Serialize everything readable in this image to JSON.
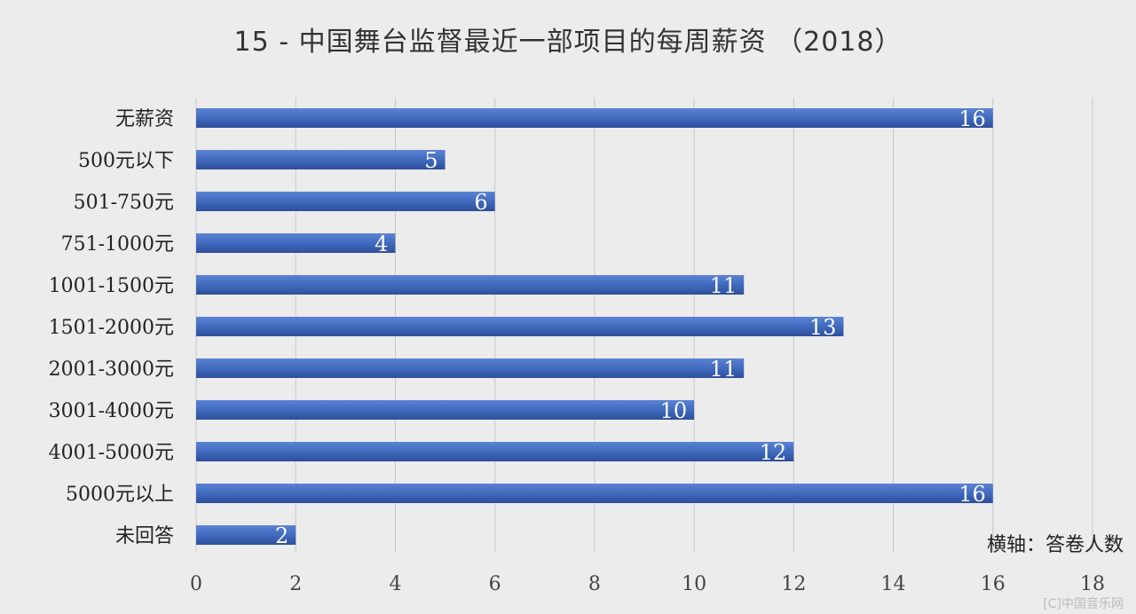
{
  "chart_data": {
    "type": "bar",
    "orientation": "horizontal",
    "title": "15 - 中国舞台监督最近一部项目的每周薪资 （2018）",
    "categories": [
      "无薪资",
      "500元以下",
      "501-750元",
      "751-1000元",
      "1001-1500元",
      "1501-2000元",
      "2001-3000元",
      "3001-4000元",
      "4001-5000元",
      "5000元以上",
      "未回答"
    ],
    "values": [
      16,
      5,
      6,
      4,
      11,
      13,
      11,
      10,
      12,
      16,
      2
    ],
    "x_ticks": [
      "0",
      "2",
      "4",
      "6",
      "8",
      "10",
      "12",
      "14",
      "16",
      "18"
    ],
    "xlim": [
      0,
      18
    ],
    "xlabel": "横轴：答卷人数",
    "grid": "vertical",
    "bar_color": "#4a72c4",
    "data_labels": "inside-end"
  },
  "watermark": "[C]中国音乐网"
}
